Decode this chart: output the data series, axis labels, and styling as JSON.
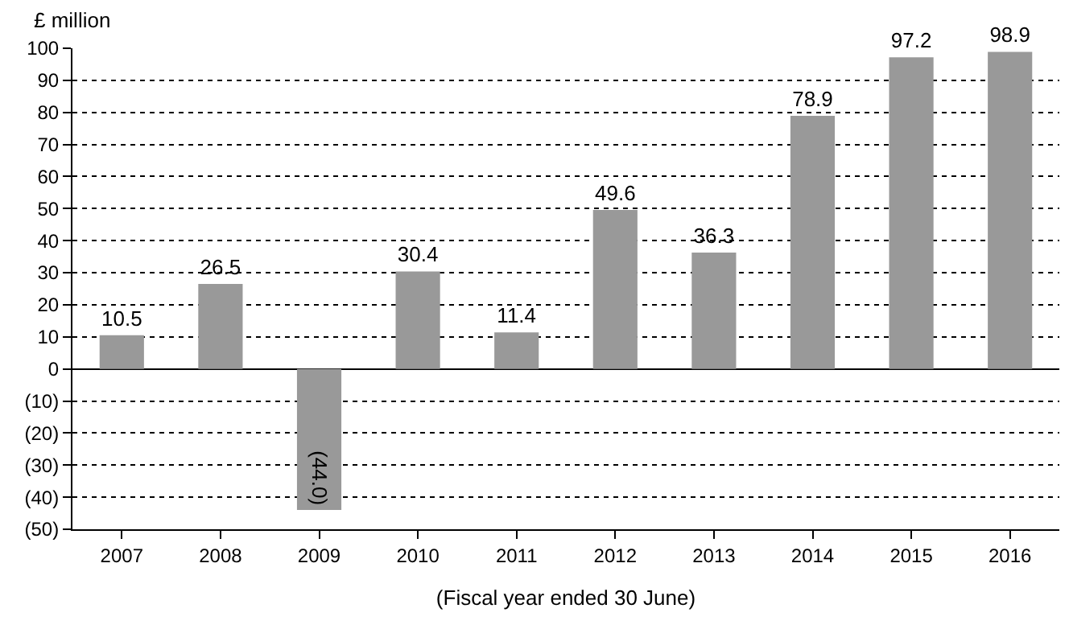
{
  "chart_data": {
    "type": "bar",
    "ylabel": "£ million",
    "xlabel": "(Fiscal year ended 30 June)",
    "categories": [
      "2007",
      "2008",
      "2009",
      "2010",
      "2011",
      "2012",
      "2013",
      "2014",
      "2015",
      "2016"
    ],
    "values": [
      10.5,
      26.5,
      -44.0,
      30.4,
      11.4,
      49.6,
      36.3,
      78.9,
      97.2,
      98.9
    ],
    "value_labels": [
      "10.5",
      "26.5",
      "(44.0)",
      "30.4",
      "11.4",
      "49.6",
      "36.3",
      "78.9",
      "97.2",
      "98.9"
    ],
    "color": "#999999",
    "ylim": [
      -50,
      100
    ],
    "yticks": [
      {
        "value": -50,
        "label": "(50)"
      },
      {
        "value": -40,
        "label": "(40)"
      },
      {
        "value": -30,
        "label": "(30)"
      },
      {
        "value": -20,
        "label": "(20)"
      },
      {
        "value": -10,
        "label": "(10)"
      },
      0,
      10,
      20,
      30,
      40,
      50,
      60,
      70,
      80,
      90,
      100
    ],
    "grid": "y",
    "legend": false
  }
}
